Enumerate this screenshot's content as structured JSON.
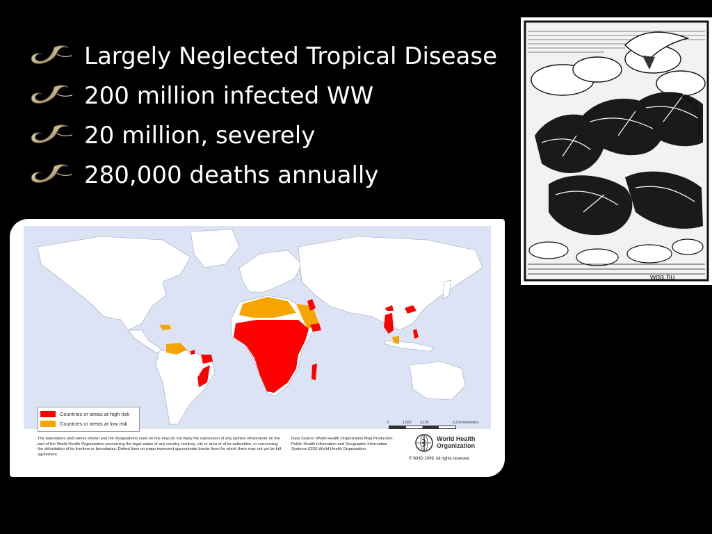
{
  "bullets": [
    {
      "icon": "worm-icon",
      "text": "Largely Neglected Tropical Disease"
    },
    {
      "icon": "worm-icon",
      "text": "200 million infected WW"
    },
    {
      "icon": "worm-icon",
      "text": "20 million, severely"
    },
    {
      "icon": "worm-icon",
      "text": "280,000 deaths annually"
    }
  ],
  "woodcut": {
    "credit": "wga.hu"
  },
  "map": {
    "legend": {
      "high_risk": {
        "label": "Countries or areas at high risk",
        "color": "#ff0000"
      },
      "low_risk": {
        "label": "Countries or areas at low risk",
        "color": "#f5a400"
      }
    },
    "scale": {
      "t0": "0",
      "t1": "1,550",
      "t2": "3,100",
      "t3": "6,200 Kilometers"
    },
    "disclaimer": "The boundaries and names shown and the designations used on this map do not imply the expression of any opinion whatsoever on the part of the World Health Organization concerning the legal status of any country, territory, city or area or of its authorities, or concerning the delimitation of its frontiers or boundaries. Dotted lines on maps represent approximate border lines for which there may not yet be full agreement.",
    "source": "Data Source: World Health Organization Map Production: Public Health Information and Geographic Information Systems (GIS) World Health Organization",
    "who_name_line1": "World Health",
    "who_name_line2": "Organization",
    "copyright": "© WHO 2009. All rights reserved",
    "land_color": "#ffffff",
    "ocean_color": "#dbe3f5"
  }
}
